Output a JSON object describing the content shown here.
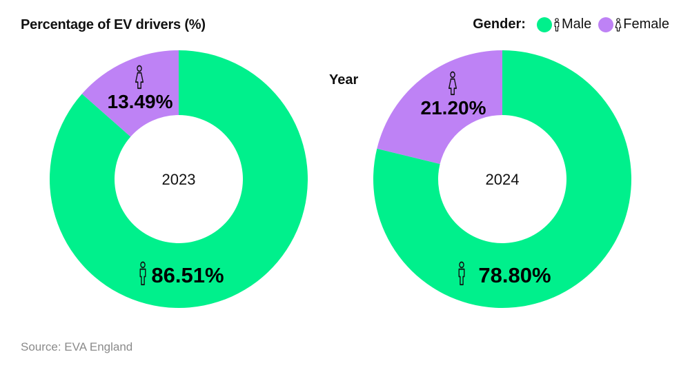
{
  "title": "Percentage of EV drivers (%)",
  "legend": {
    "title": "Gender:",
    "items": [
      {
        "label": "Male",
        "color": "#00f08c",
        "icon": "male-person-icon"
      },
      {
        "label": "Female",
        "color": "#be82f5",
        "icon": "female-person-icon"
      }
    ]
  },
  "year_axis_label": "Year",
  "source": "Source: EVA England",
  "chart_data": [
    {
      "type": "pie",
      "center_label": "2023",
      "categories": [
        "Male",
        "Female"
      ],
      "values": [
        86.51,
        13.49
      ],
      "value_labels": [
        "86.51%",
        "13.49%"
      ],
      "colors": [
        "#00f08c",
        "#be82f5"
      ]
    },
    {
      "type": "pie",
      "center_label": "2024",
      "categories": [
        "Male",
        "Female"
      ],
      "values": [
        78.8,
        21.2
      ],
      "value_labels": [
        "78.80%",
        "21.20%"
      ],
      "colors": [
        "#00f08c",
        "#be82f5"
      ]
    }
  ]
}
